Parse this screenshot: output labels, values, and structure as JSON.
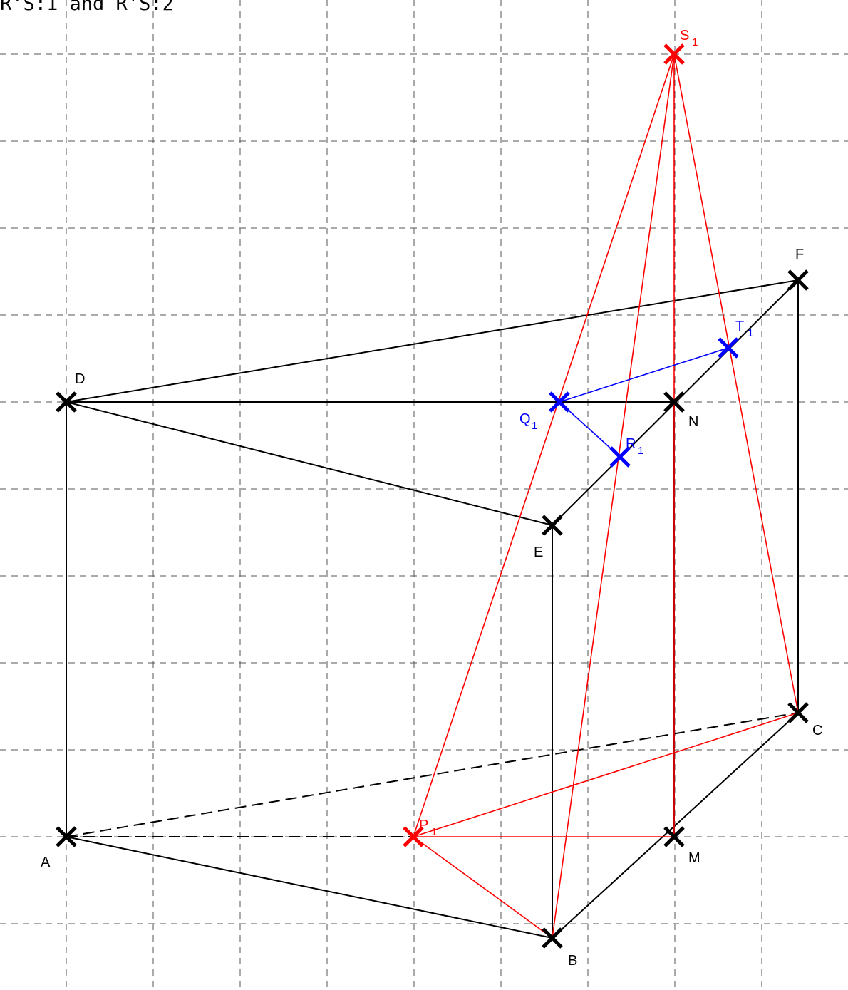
{
  "caption": "R'S:1 and R'S:2",
  "colors": {
    "black": "#000000",
    "red": "#ff0000",
    "blue": "#0000ff",
    "grid": "#555555"
  },
  "points": [
    {
      "id": "A",
      "label": "A",
      "sub": "",
      "color": "black"
    },
    {
      "id": "B",
      "label": "B",
      "sub": "",
      "color": "black"
    },
    {
      "id": "C",
      "label": "C",
      "sub": "",
      "color": "black"
    },
    {
      "id": "D",
      "label": "D",
      "sub": "",
      "color": "black"
    },
    {
      "id": "E",
      "label": "E",
      "sub": "",
      "color": "black"
    },
    {
      "id": "F",
      "label": "F",
      "sub": "",
      "color": "black"
    },
    {
      "id": "M",
      "label": "M",
      "sub": "",
      "color": "black"
    },
    {
      "id": "N",
      "label": "N",
      "sub": "",
      "color": "black"
    },
    {
      "id": "P1",
      "label": "P",
      "sub": "1",
      "color": "red"
    },
    {
      "id": "S1",
      "label": "S",
      "sub": "1",
      "color": "red"
    },
    {
      "id": "Q1",
      "label": "Q",
      "sub": "1",
      "color": "blue"
    },
    {
      "id": "R1",
      "label": "R",
      "sub": "1",
      "color": "blue"
    },
    {
      "id": "T1",
      "label": "T",
      "sub": "1",
      "color": "blue"
    }
  ],
  "segments": [
    {
      "from": "A",
      "to": "B",
      "color": "black",
      "dashed": false
    },
    {
      "from": "B",
      "to": "C",
      "color": "black",
      "dashed": false
    },
    {
      "from": "A",
      "to": "C",
      "color": "black",
      "dashed": true
    },
    {
      "from": "A",
      "to": "P1",
      "color": "black",
      "dashed": true
    },
    {
      "from": "A",
      "to": "D",
      "color": "black",
      "dashed": false
    },
    {
      "from": "B",
      "to": "E",
      "color": "black",
      "dashed": false
    },
    {
      "from": "C",
      "to": "F",
      "color": "black",
      "dashed": false
    },
    {
      "from": "M",
      "to": "N",
      "color": "black",
      "dashed": false
    },
    {
      "from": "D",
      "to": "E",
      "color": "black",
      "dashed": false
    },
    {
      "from": "E",
      "to": "F",
      "color": "black",
      "dashed": false
    },
    {
      "from": "D",
      "to": "F",
      "color": "black",
      "dashed": false
    },
    {
      "from": "D",
      "to": "N",
      "color": "black",
      "dashed": false
    },
    {
      "from": "P1",
      "to": "M",
      "color": "red",
      "dashed": false
    },
    {
      "from": "P1",
      "to": "B",
      "color": "red",
      "dashed": false
    },
    {
      "from": "P1",
      "to": "C",
      "color": "red",
      "dashed": false
    },
    {
      "from": "S1",
      "to": "P1",
      "color": "red",
      "dashed": false
    },
    {
      "from": "S1",
      "to": "B",
      "color": "red",
      "dashed": false
    },
    {
      "from": "S1",
      "to": "C",
      "color": "red",
      "dashed": false
    },
    {
      "from": "S1",
      "to": "M",
      "color": "red",
      "dashed": false
    },
    {
      "from": "Q1",
      "to": "R1",
      "color": "blue",
      "dashed": false
    },
    {
      "from": "Q1",
      "to": "T1",
      "color": "blue",
      "dashed": false
    }
  ]
}
